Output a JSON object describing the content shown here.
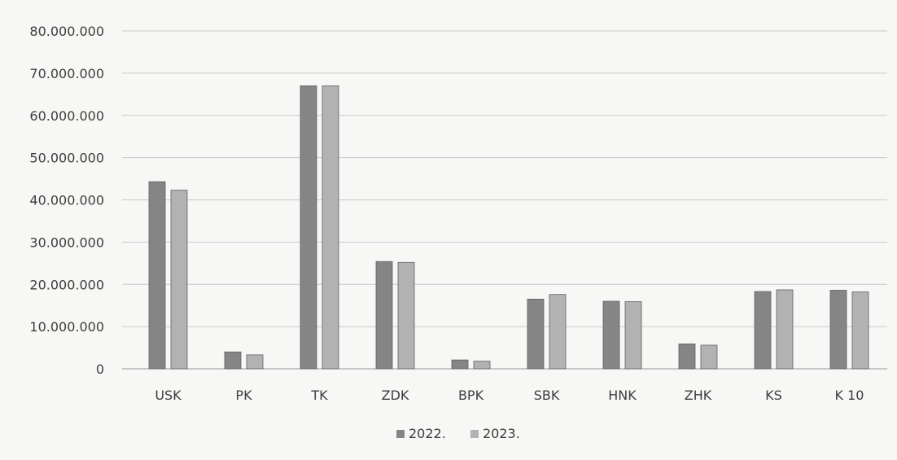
{
  "chart_data": {
    "type": "bar",
    "title": "",
    "xlabel": "",
    "ylabel": "",
    "categories": [
      "USK",
      "PK",
      "TK",
      "ZDK",
      "BPK",
      "SBK",
      "HNK",
      "ZHK",
      "KS",
      "K 10"
    ],
    "series": [
      {
        "name": "2022.",
        "color": "#858585",
        "values": [
          44300000,
          4000000,
          67000000,
          25400000,
          2100000,
          16500000,
          16000000,
          5900000,
          18300000,
          18600000
        ]
      },
      {
        "name": "2023.",
        "color": "#b2b2b2",
        "values": [
          42300000,
          3300000,
          67000000,
          25200000,
          1800000,
          17600000,
          15900000,
          5600000,
          18700000,
          18200000
        ]
      }
    ],
    "ylim": [
      0,
      80000000
    ],
    "yticks": [
      0,
      10000000,
      20000000,
      30000000,
      40000000,
      50000000,
      60000000,
      70000000,
      80000000
    ],
    "ytick_labels": [
      "0",
      "10.000.000",
      "20.000.000",
      "30.000.000",
      "40.000.000",
      "50.000.000",
      "60.000.000",
      "70.000.000",
      "80.000.000"
    ],
    "grid": true,
    "legend": "bottom"
  }
}
